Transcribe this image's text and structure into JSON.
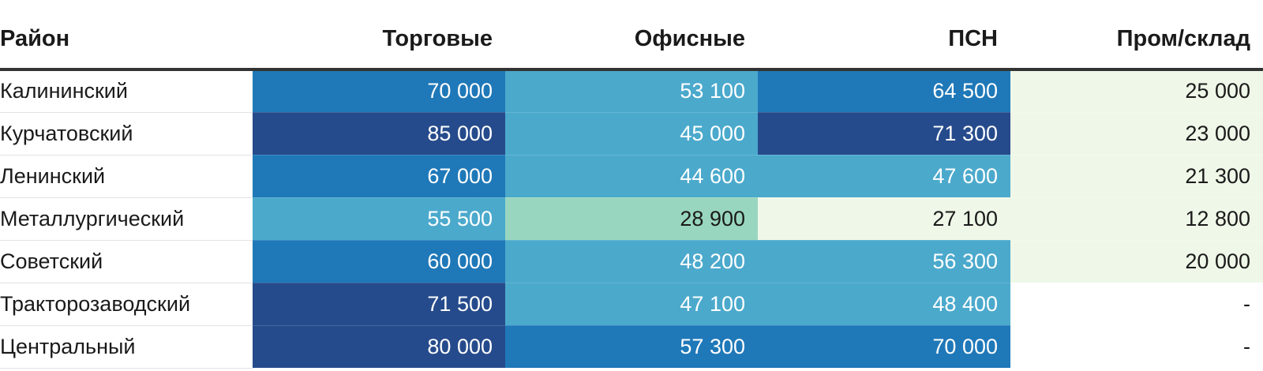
{
  "chart_data": {
    "type": "table",
    "columns": [
      "Район",
      "Торговые",
      "Офисные",
      "ПСН",
      "Пром/склад"
    ],
    "rows": [
      {
        "district": "Калининский",
        "values": [
          "70 000",
          "53 100",
          "64 500",
          "25 000"
        ]
      },
      {
        "district": "Курчатовский",
        "values": [
          "85 000",
          "45 000",
          "71 300",
          "23 000"
        ]
      },
      {
        "district": "Ленинский",
        "values": [
          "67 000",
          "44 600",
          "47 600",
          "21 300"
        ]
      },
      {
        "district": "Металлургический",
        "values": [
          "55 500",
          "28 900",
          "27 100",
          "12 800"
        ]
      },
      {
        "district": "Советский",
        "values": [
          "60 000",
          "48 200",
          "56 300",
          "20 000"
        ]
      },
      {
        "district": "Тракторозаводский",
        "values": [
          "71 500",
          "47 100",
          "48 400",
          "-"
        ]
      },
      {
        "district": "Центральный",
        "values": [
          "80 000",
          "57 300",
          "70 000",
          "-"
        ]
      }
    ],
    "color_scale": [
      {
        "min": 70001,
        "color": "#264b8c",
        "text": "#ffffff"
      },
      {
        "min": 56301,
        "color": "#1f78b8",
        "text": "#ffffff"
      },
      {
        "min": 29000,
        "color": "#4ba9cc",
        "text": "#ffffff"
      },
      {
        "min": 27500,
        "color": "#99d6c0",
        "text": "#1a1a1a"
      },
      {
        "min": 1,
        "color": "#eff8e8",
        "text": "#1a1a1a"
      }
    ],
    "empty_color": "#ffffff"
  }
}
